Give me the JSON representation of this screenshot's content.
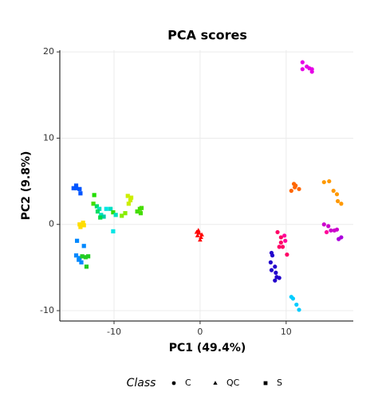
{
  "chart_data": {
    "type": "scatter",
    "title": "PCA scores",
    "x_label": "PC1 (49.4%)",
    "y_label": "PC2 (9.8%)",
    "legend_title": "Class",
    "xlim": [
      -16.3,
      17.8
    ],
    "ylim": [
      -11.2,
      20.2
    ],
    "xticks": [
      -10,
      0,
      10
    ],
    "yticks": [
      -10,
      0,
      10,
      20
    ],
    "grid": true,
    "series": [
      {
        "name": "C",
        "shape": "circle",
        "x": [
          11.9,
          12.4,
          11.9,
          12.7,
          13.0,
          13.0,
          10.9,
          11.0,
          11.5,
          10.6,
          11.1,
          14.4,
          15.0,
          15.5,
          15.9,
          16.0,
          16.4,
          9.0,
          9.4,
          9.8,
          9.4,
          9.9,
          9.6,
          9.2,
          10.1,
          8.3,
          8.4,
          8.2,
          8.7,
          8.3,
          8.8,
          9.2,
          8.7,
          8.9,
          10.6,
          10.8,
          11.2,
          11.5,
          14.4,
          14.9,
          14.7,
          15.2,
          15.6,
          15.9,
          16.4,
          16.1
        ],
        "values": [
          18.8,
          18.3,
          18.0,
          18.1,
          17.7,
          18.0,
          4.7,
          4.3,
          4.1,
          3.9,
          4.5,
          4.9,
          5.0,
          3.9,
          3.5,
          2.7,
          2.4,
          -0.9,
          -1.5,
          -1.3,
          -2.1,
          -1.9,
          -2.6,
          -2.6,
          -3.5,
          -3.3,
          -3.6,
          -4.4,
          -4.9,
          -5.3,
          -5.6,
          -6.2,
          -6.5,
          -6.1,
          -8.4,
          -8.6,
          -9.3,
          -9.9,
          0,
          -0.2,
          -0.9,
          -0.7,
          -0.7,
          -0.6,
          -1.5,
          -1.7
        ],
        "colors": [
          "#e600e6",
          "#e600e6",
          "#e600e6",
          "#e600e6",
          "#e600e6",
          "#e600e6",
          "#ff6600",
          "#ff6600",
          "#ff6600",
          "#ff6600",
          "#ff6600",
          "#ff9900",
          "#ff9900",
          "#ff9900",
          "#ff9900",
          "#ff9900",
          "#ff9900",
          "#ff0066",
          "#ff0066",
          "#ff0099",
          "#ff0066",
          "#ff0099",
          "#ff0066",
          "#ff0066",
          "#ff0066",
          "#2200cc",
          "#2200cc",
          "#2200cc",
          "#2200cc",
          "#2200cc",
          "#2200cc",
          "#2200cc",
          "#2200cc",
          "#2200cc",
          "#00ccff",
          "#00ccff",
          "#00ccff",
          "#00ccff",
          "#cc00cc",
          "#cc00cc",
          "#ff0099",
          "#cc00cc",
          "#cc00cc",
          "#cc00cc",
          "#aa00dd",
          "#aa00dd"
        ]
      },
      {
        "name": "QC",
        "shape": "triangle",
        "x": [
          -0.2,
          -0.1,
          -0.3,
          0.1,
          0,
          -0.4,
          0.2
        ],
        "values": [
          -0.7,
          -1.0,
          -1.3,
          -1.5,
          -1.8,
          -0.9,
          -1.2
        ],
        "colors": [
          "#ff0000",
          "#ff0000",
          "#ff0000",
          "#ff0000",
          "#ff0000",
          "#ff0000",
          "#ff0000"
        ]
      },
      {
        "name": "S",
        "shape": "square",
        "x": [
          -14.4,
          -14.7,
          -14.0,
          -13.9,
          -14.4,
          -14,
          -13.6,
          -13.9,
          -13.5,
          -12.3,
          -12.4,
          -12.0,
          -11.7,
          -11.9,
          -11.5,
          -11.2,
          -11.6,
          -10.9,
          -10.4,
          -10.1,
          -9.8,
          -8.4,
          -8.1,
          -8.0,
          -8.3,
          -7.0,
          -6.8,
          -7.3,
          -6.9,
          -9.1,
          -8.7,
          -10.1,
          -14.3,
          -13.5,
          -14.4,
          -14,
          -13.8,
          -14.1,
          -13.7,
          -13.3,
          -13,
          -13.2
        ],
        "values": [
          4.5,
          4.2,
          4.1,
          3.6,
          4.2,
          0,
          0.2,
          -0.3,
          -0.1,
          3.4,
          2.4,
          2.1,
          1.8,
          1.5,
          1.1,
          0.9,
          0.8,
          1.8,
          1.8,
          1.4,
          1.1,
          3.3,
          2.8,
          3.1,
          2.4,
          1.8,
          1.9,
          1.5,
          1.3,
          1.0,
          1.3,
          -0.8,
          -1.9,
          -2.5,
          -3.6,
          -3.9,
          -4.4,
          -4.1,
          -3.7,
          -3.8,
          -3.7,
          -4.9
        ],
        "colors": [
          "#0055ff",
          "#0055ff",
          "#0055ff",
          "#0055ff",
          "#0055ff",
          "#ffdd00",
          "#ffdd00",
          "#ffdd00",
          "#ffdd00",
          "#22dd00",
          "#44dd00",
          "#00dd66",
          "#00e0c0",
          "#00dd66",
          "#00e0c0",
          "#00ccaa",
          "#00dd44",
          "#00e5e5",
          "#00e0c0",
          "#33dd00",
          "#00e0c0",
          "#ccee00",
          "#ccee00",
          "#ccee00",
          "#ccee00",
          "#44dd00",
          "#44dd00",
          "#44dd00",
          "#44dd00",
          "#88ee00",
          "#88ee00",
          "#00e5e5",
          "#0088ff",
          "#0088ff",
          "#0088ff",
          "#0088ff",
          "#0088ff",
          "#0088ff",
          "#22cc22",
          "#22cc22",
          "#22cc22",
          "#22cc22"
        ]
      }
    ]
  }
}
